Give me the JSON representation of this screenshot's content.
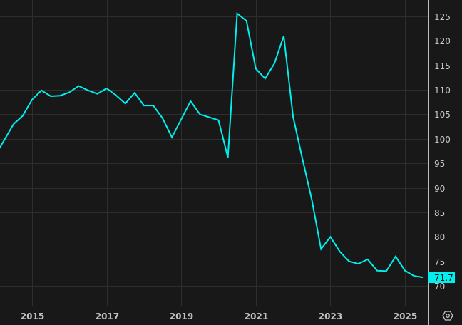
{
  "chart_data": {
    "type": "line",
    "title": "",
    "xlabel": "",
    "ylabel": "",
    "xlim": [
      2014.14,
      2025.7
    ],
    "ylim": [
      66.2,
      128.4
    ],
    "grid": true,
    "y_axis_side": "right",
    "x_ticks": [
      2015,
      2017,
      2019,
      2021,
      2023,
      2025
    ],
    "x_tick_labels": [
      "2015",
      "2017",
      "2019",
      "2021",
      "2023",
      "2025"
    ],
    "y_ticks": [
      70,
      75,
      80,
      85,
      90,
      95,
      100,
      105,
      110,
      115,
      120,
      125
    ],
    "y_tick_labels": [
      "70",
      "75",
      "80",
      "85",
      "90",
      "95",
      "100",
      "105",
      "110",
      "115",
      "120",
      "125"
    ],
    "line_color": "#00f0f0",
    "last_value_label": "71.7",
    "series": [
      {
        "x": [
          2014.0,
          2014.25,
          2014.5,
          2014.75,
          2015.0,
          2015.25,
          2015.5,
          2015.75,
          2016.0,
          2016.25,
          2016.5,
          2016.75,
          2017.0,
          2017.25,
          2017.5,
          2017.75,
          2018.0,
          2018.25,
          2018.5,
          2018.75,
          2019.0,
          2019.25,
          2019.5,
          2019.75,
          2020.0,
          2020.25,
          2020.5,
          2020.75,
          2021.0,
          2021.25,
          2021.5,
          2021.75,
          2022.0,
          2022.25,
          2022.5,
          2022.75,
          2023.0,
          2023.25,
          2023.5,
          2023.75,
          2024.0,
          2024.25,
          2024.5,
          2024.75,
          2025.0,
          2025.25,
          2025.5
        ],
        "values": [
          96.5,
          99.7,
          103.0,
          104.7,
          108.0,
          109.9,
          108.7,
          108.8,
          109.5,
          110.8,
          109.9,
          109.2,
          110.3,
          108.9,
          107.2,
          109.4,
          106.8,
          106.8,
          104.2,
          100.3,
          104.0,
          107.7,
          105.0,
          104.4,
          103.8,
          96.2,
          125.6,
          124.1,
          114.3,
          112.3,
          115.4,
          121.0,
          104.5,
          95.9,
          87.6,
          77.5,
          80.0,
          77.0,
          75.0,
          74.5,
          75.4,
          73.1,
          73.0,
          76.0,
          73.1,
          72.0,
          71.7
        ]
      }
    ]
  },
  "toolbar": {
    "settings_icon": "hexagon-settings-icon"
  }
}
